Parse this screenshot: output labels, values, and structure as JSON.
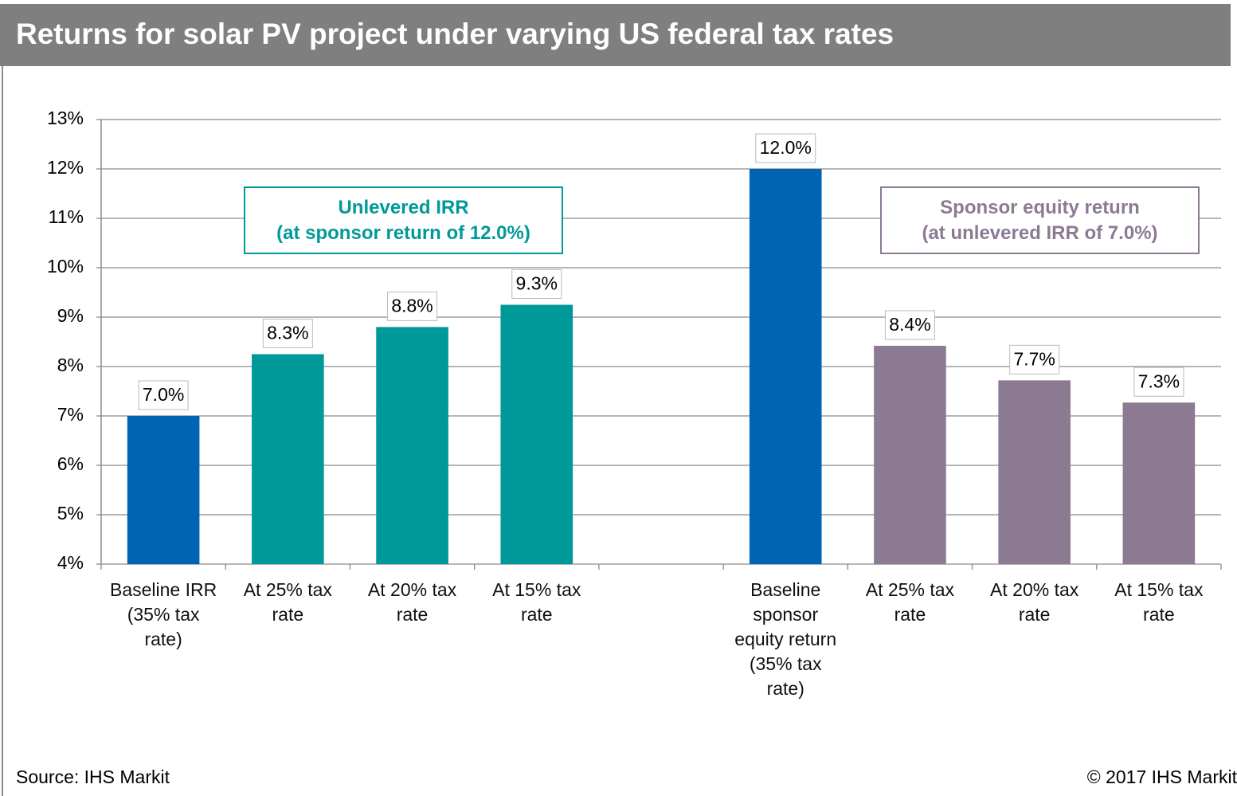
{
  "chart_data": {
    "type": "bar",
    "title": "Returns for solar PV project under varying US federal tax rates",
    "categories": [
      "Baseline IRR\n(35% tax\nrate)",
      "At 25% tax\nrate",
      "At 20% tax\nrate",
      "At 15% tax\nrate",
      null,
      "Baseline\nsponsor\nequity return\n(35% tax\nrate)",
      "At 25% tax\nrate",
      "At 20% tax\nrate",
      "At 15% tax\nrate"
    ],
    "values": [
      7.0,
      8.25,
      8.8,
      9.25,
      null,
      12.0,
      8.42,
      7.72,
      7.27
    ],
    "value_labels": [
      "7.0%",
      "8.3%",
      "8.8%",
      "9.3%",
      null,
      "12.0%",
      "8.4%",
      "7.7%",
      "7.3%"
    ],
    "colors": [
      "#0064b4",
      "#009999",
      "#009999",
      "#009999",
      null,
      "#0064b4",
      "#8c7a92",
      "#8c7a92",
      "#8c7a92"
    ],
    "ylim": [
      4,
      13
    ],
    "yticks": [
      {
        "value": 4,
        "label": "4%"
      },
      {
        "value": 5,
        "label": "5%"
      },
      {
        "value": 6,
        "label": "6%"
      },
      {
        "value": 7,
        "label": "7%"
      },
      {
        "value": 8,
        "label": "8%"
      },
      {
        "value": 9,
        "label": "9%"
      },
      {
        "value": 10,
        "label": "10%"
      },
      {
        "value": 11,
        "label": "11%"
      },
      {
        "value": 12,
        "label": "12%"
      },
      {
        "value": 13,
        "label": "13%"
      }
    ],
    "grid": true,
    "annotations": [
      {
        "text": "Unlevered IRR\n(at sponsor return of 12.0%)",
        "color": "#009999"
      },
      {
        "text": "Sponsor equity return\n(at unlevered IRR of 7.0%)",
        "color": "#8c7a92"
      }
    ],
    "source": "Source: IHS Markit",
    "copyright": "© 2017 IHS Markit"
  }
}
